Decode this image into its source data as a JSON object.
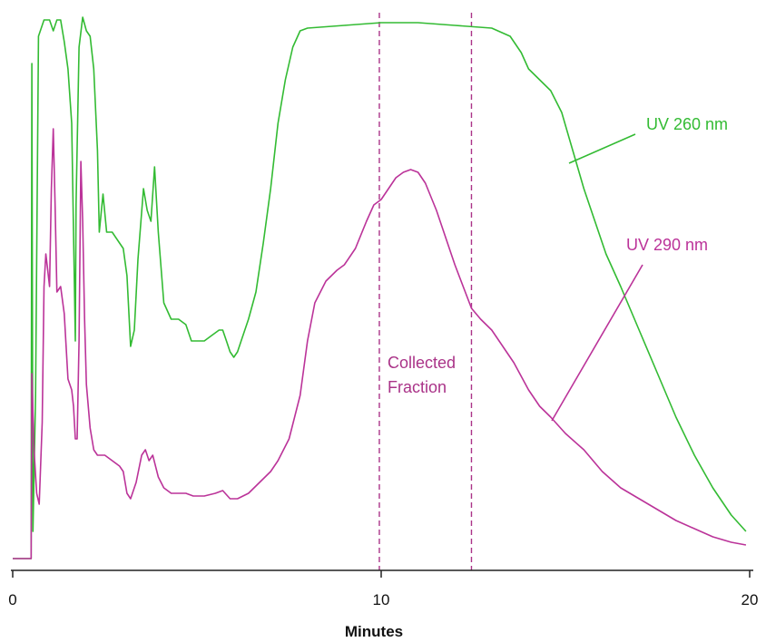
{
  "chart_data": {
    "type": "line",
    "title": "",
    "xlabel": "Minutes",
    "ylabel": "",
    "xlim": [
      0,
      20
    ],
    "ylim": [
      0,
      100
    ],
    "x_ticks": [
      0,
      10,
      20
    ],
    "grid": false,
    "legend": "none",
    "colors": {
      "uv260": "#33bb33",
      "uv290": "#bb3399",
      "fraction": "#aa3388",
      "axis": "#222222"
    },
    "annotations": {
      "uv260_label": "UV 260 nm",
      "uv290_label": "UV 290 nm",
      "fraction_line1": "Collected",
      "fraction_line2": "Fraction"
    },
    "collected_fraction": {
      "start": 9.95,
      "end": 12.45
    },
    "series": [
      {
        "key": "uv260",
        "points": [
          [
            0.0,
            0
          ],
          [
            0.5,
            0
          ],
          [
            0.52,
            91
          ],
          [
            0.55,
            5
          ],
          [
            0.62,
            30
          ],
          [
            0.7,
            96
          ],
          [
            0.85,
            99
          ],
          [
            1.0,
            99
          ],
          [
            1.1,
            97
          ],
          [
            1.2,
            99
          ],
          [
            1.3,
            99
          ],
          [
            1.4,
            95
          ],
          [
            1.5,
            90
          ],
          [
            1.6,
            80
          ],
          [
            1.65,
            60
          ],
          [
            1.7,
            40
          ],
          [
            1.72,
            65
          ],
          [
            1.8,
            94
          ],
          [
            1.9,
            99.5
          ],
          [
            2.0,
            97
          ],
          [
            2.1,
            96
          ],
          [
            2.2,
            90
          ],
          [
            2.3,
            75
          ],
          [
            2.35,
            60
          ],
          [
            2.45,
            67
          ],
          [
            2.55,
            60
          ],
          [
            2.7,
            60
          ],
          [
            2.9,
            58
          ],
          [
            3.0,
            57
          ],
          [
            3.1,
            52
          ],
          [
            3.2,
            39
          ],
          [
            3.3,
            42
          ],
          [
            3.4,
            55
          ],
          [
            3.55,
            68
          ],
          [
            3.65,
            64
          ],
          [
            3.75,
            62
          ],
          [
            3.85,
            72
          ],
          [
            3.95,
            60
          ],
          [
            4.1,
            47
          ],
          [
            4.3,
            44
          ],
          [
            4.5,
            44
          ],
          [
            4.7,
            43
          ],
          [
            4.85,
            40
          ],
          [
            5.0,
            40
          ],
          [
            5.2,
            40
          ],
          [
            5.4,
            41
          ],
          [
            5.6,
            42
          ],
          [
            5.7,
            42
          ],
          [
            5.8,
            40
          ],
          [
            5.9,
            38
          ],
          [
            6.0,
            37
          ],
          [
            6.1,
            38
          ],
          [
            6.2,
            40
          ],
          [
            6.4,
            44
          ],
          [
            6.6,
            49
          ],
          [
            6.8,
            58
          ],
          [
            7.0,
            68
          ],
          [
            7.2,
            80
          ],
          [
            7.4,
            88
          ],
          [
            7.6,
            94
          ],
          [
            7.8,
            97
          ],
          [
            8.0,
            97.5
          ],
          [
            9.0,
            98
          ],
          [
            10.0,
            98.5
          ],
          [
            11.0,
            98.5
          ],
          [
            12.0,
            98
          ],
          [
            13.0,
            97.5
          ],
          [
            13.5,
            96
          ],
          [
            13.8,
            93
          ],
          [
            14.0,
            90
          ],
          [
            14.3,
            88
          ],
          [
            14.6,
            86
          ],
          [
            14.9,
            82
          ],
          [
            15.2,
            75
          ],
          [
            15.5,
            68
          ],
          [
            15.8,
            62
          ],
          [
            16.1,
            56
          ],
          [
            16.5,
            50
          ],
          [
            17.0,
            42
          ],
          [
            17.5,
            34
          ],
          [
            18.0,
            26
          ],
          [
            18.5,
            19
          ],
          [
            19.0,
            13
          ],
          [
            19.5,
            8
          ],
          [
            19.9,
            5
          ]
        ]
      },
      {
        "key": "uv290",
        "points": [
          [
            0.0,
            0
          ],
          [
            0.5,
            0
          ],
          [
            0.52,
            34
          ],
          [
            0.58,
            20
          ],
          [
            0.65,
            12
          ],
          [
            0.72,
            10
          ],
          [
            0.8,
            25
          ],
          [
            0.85,
            50
          ],
          [
            0.9,
            56
          ],
          [
            0.95,
            53
          ],
          [
            1.0,
            50
          ],
          [
            1.05,
            68
          ],
          [
            1.1,
            79
          ],
          [
            1.15,
            65
          ],
          [
            1.2,
            49
          ],
          [
            1.3,
            50
          ],
          [
            1.4,
            45
          ],
          [
            1.5,
            33
          ],
          [
            1.6,
            31
          ],
          [
            1.65,
            28
          ],
          [
            1.7,
            22
          ],
          [
            1.75,
            22
          ],
          [
            1.8,
            40
          ],
          [
            1.85,
            73
          ],
          [
            1.9,
            62
          ],
          [
            1.95,
            44
          ],
          [
            2.0,
            32
          ],
          [
            2.1,
            24
          ],
          [
            2.2,
            20
          ],
          [
            2.3,
            19
          ],
          [
            2.5,
            19
          ],
          [
            2.7,
            18
          ],
          [
            2.9,
            17
          ],
          [
            3.0,
            16
          ],
          [
            3.1,
            12
          ],
          [
            3.2,
            11
          ],
          [
            3.35,
            14
          ],
          [
            3.5,
            19
          ],
          [
            3.6,
            20
          ],
          [
            3.7,
            18
          ],
          [
            3.8,
            19
          ],
          [
            3.95,
            15
          ],
          [
            4.1,
            13
          ],
          [
            4.3,
            12
          ],
          [
            4.5,
            12
          ],
          [
            4.7,
            12
          ],
          [
            4.9,
            11.5
          ],
          [
            5.2,
            11.5
          ],
          [
            5.5,
            12
          ],
          [
            5.7,
            12.5
          ],
          [
            5.9,
            11
          ],
          [
            6.1,
            11
          ],
          [
            6.4,
            12
          ],
          [
            6.7,
            14
          ],
          [
            7.0,
            16
          ],
          [
            7.2,
            18
          ],
          [
            7.5,
            22
          ],
          [
            7.8,
            30
          ],
          [
            8.0,
            40
          ],
          [
            8.2,
            47
          ],
          [
            8.5,
            51
          ],
          [
            8.8,
            53
          ],
          [
            9.0,
            54
          ],
          [
            9.3,
            57
          ],
          [
            9.6,
            62
          ],
          [
            9.8,
            65
          ],
          [
            10.0,
            66
          ],
          [
            10.2,
            68
          ],
          [
            10.4,
            70
          ],
          [
            10.6,
            71
          ],
          [
            10.8,
            71.5
          ],
          [
            11.0,
            71
          ],
          [
            11.2,
            69
          ],
          [
            11.5,
            64
          ],
          [
            12.0,
            54
          ],
          [
            12.45,
            46
          ],
          [
            12.7,
            44
          ],
          [
            13.0,
            42
          ],
          [
            13.3,
            39
          ],
          [
            13.6,
            36
          ],
          [
            14.0,
            31
          ],
          [
            14.3,
            28
          ],
          [
            14.6,
            26
          ],
          [
            15.0,
            23
          ],
          [
            15.5,
            20
          ],
          [
            16.0,
            16
          ],
          [
            16.5,
            13
          ],
          [
            17.0,
            11
          ],
          [
            17.5,
            9
          ],
          [
            18.0,
            7
          ],
          [
            18.5,
            5.5
          ],
          [
            19.0,
            4
          ],
          [
            19.5,
            3
          ],
          [
            19.9,
            2.5
          ]
        ]
      }
    ]
  }
}
